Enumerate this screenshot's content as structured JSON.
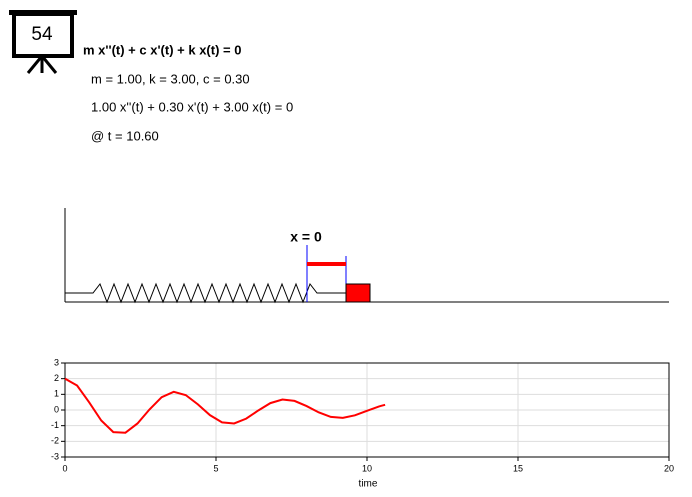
{
  "badge": "54",
  "equation": "m x''(t) + c x'(t) + k x(t) = 0",
  "parameters": "m = 1.00, k = 3.00, c = 0.30",
  "numeric_equation": "1.00 x''(t) + 0.30 x'(t) + 3.00 x(t) = 0",
  "time_label": "@ t = 10.60",
  "equilibrium_label": "x = 0",
  "chart_data": {
    "type": "line",
    "xlabel": "time",
    "x": [
      0,
      0.4,
      0.8,
      1.2,
      1.6,
      2.0,
      2.4,
      2.8,
      3.2,
      3.6,
      4.0,
      4.4,
      4.8,
      5.2,
      5.6,
      6.0,
      6.4,
      6.8,
      7.2,
      7.6,
      8.0,
      8.4,
      8.8,
      9.2,
      9.6,
      10.0,
      10.4,
      10.6
    ],
    "series": [
      {
        "color": "#ff0000",
        "values": [
          2,
          1.56,
          0.49,
          -0.67,
          -1.41,
          -1.45,
          -0.86,
          0.04,
          0.82,
          1.16,
          0.95,
          0.36,
          -0.33,
          -0.79,
          -0.86,
          -0.55,
          -0.03,
          0.44,
          0.67,
          0.58,
          0.25,
          -0.15,
          -0.44,
          -0.5,
          -0.34,
          -0.05,
          0.23,
          0.33
        ]
      }
    ],
    "xlim": [
      0,
      20
    ],
    "xticks": [
      0,
      5,
      10,
      15,
      20
    ],
    "ylim": [
      -3,
      3
    ],
    "yticks": [
      -3,
      -2,
      -1,
      0,
      1,
      2,
      3
    ],
    "grid": true
  }
}
